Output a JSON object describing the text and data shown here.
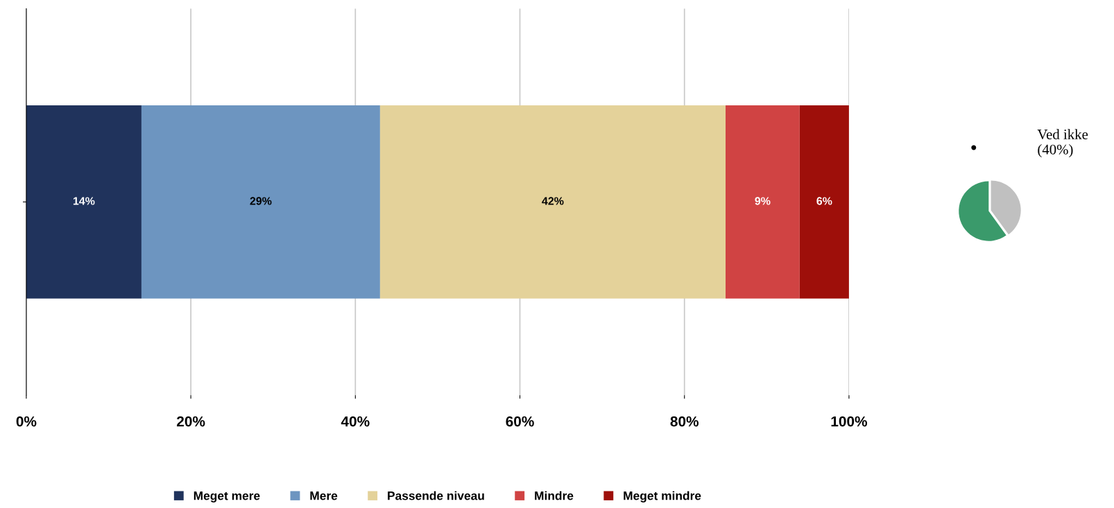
{
  "chart_data": [
    {
      "type": "bar",
      "orientation": "horizontal",
      "stacked": true,
      "categories": [
        null
      ],
      "series": [
        {
          "name": "Meget mere",
          "color": "#20335c",
          "values": [
            14
          ]
        },
        {
          "name": "Mere",
          "color": "#6d95c0",
          "values": [
            29
          ]
        },
        {
          "name": "Passende niveau",
          "color": "#e4d29a",
          "values": [
            42
          ]
        },
        {
          "name": "Mindre",
          "color": "#d04343",
          "values": [
            9
          ]
        },
        {
          "name": "Meget mindre",
          "color": "#9e0f0a",
          "values": [
            6
          ]
        }
      ],
      "xlim": [
        0,
        100
      ],
      "xticks": [
        {
          "value": 0,
          "label": "0%"
        },
        {
          "value": 20,
          "label": "20%"
        },
        {
          "value": 40,
          "label": "40%"
        },
        {
          "value": 60,
          "label": "60%"
        },
        {
          "value": 80,
          "label": "80%"
        },
        {
          "value": 100,
          "label": "100%"
        }
      ],
      "value_labels": [
        "14%",
        "29%",
        "42%",
        "9%",
        "6%"
      ],
      "grid": "x",
      "legend": "bottom"
    },
    {
      "type": "pie",
      "categories": [
        null,
        null
      ],
      "values": [
        40,
        60
      ],
      "colors": [
        "#c0c0c0",
        "#3a9a6b"
      ],
      "annotations": [
        "Ved ikke\n(40%)"
      ]
    }
  ]
}
